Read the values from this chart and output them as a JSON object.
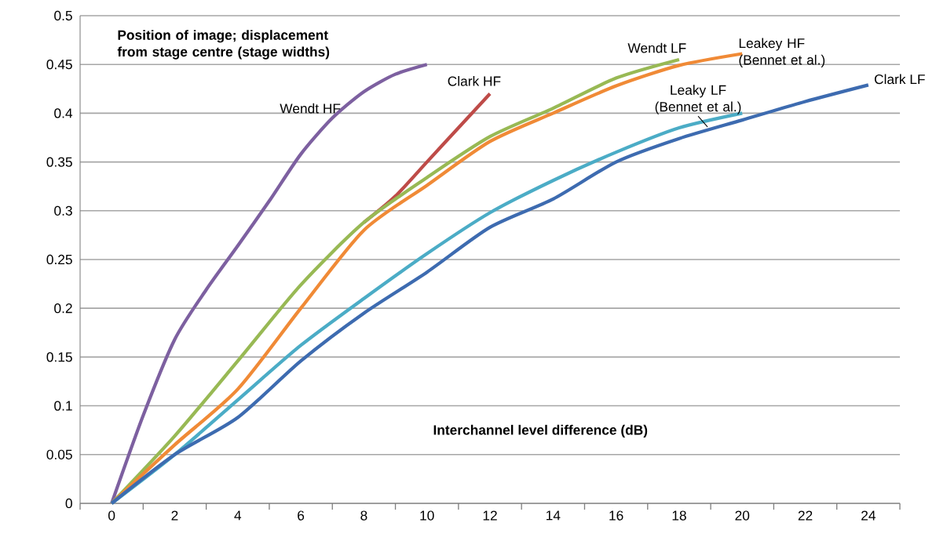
{
  "chart_data": {
    "type": "line",
    "xlabel": "Interchannel level difference (dB)",
    "ylabel": "Position of image; displacement from stage centre (stage widths)",
    "xlim": [
      -1,
      25
    ],
    "ylim": [
      0,
      0.5
    ],
    "xticks": [
      {
        "value": -1,
        "label": null
      },
      0,
      {
        "value": 1,
        "label": null
      },
      2,
      {
        "value": 3,
        "label": null
      },
      4,
      {
        "value": 5,
        "label": null
      },
      6,
      {
        "value": 7,
        "label": null
      },
      8,
      {
        "value": 9,
        "label": null
      },
      10,
      {
        "value": 11,
        "label": null
      },
      12,
      {
        "value": 13,
        "label": null
      },
      14,
      {
        "value": 15,
        "label": null
      },
      16,
      {
        "value": 17,
        "label": null
      },
      18,
      {
        "value": 19,
        "label": null
      },
      20,
      {
        "value": 21,
        "label": null
      },
      22,
      {
        "value": 23,
        "label": null
      },
      24,
      {
        "value": 25,
        "label": null
      }
    ],
    "yticks": [
      0,
      0.05,
      0.1,
      0.15,
      0.2,
      0.25,
      0.3,
      0.35,
      0.4,
      0.45,
      0.5
    ],
    "grid": "y",
    "series": [
      {
        "name": "Wendt HF",
        "color": "#7d60a0",
        "x": [
          0,
          1,
          2,
          3,
          4,
          5,
          6,
          7,
          8,
          9,
          10
        ],
        "values": [
          0,
          0.09,
          0.168,
          0.219,
          0.264,
          0.31,
          0.358,
          0.395,
          0.422,
          0.44,
          0.45
        ]
      },
      {
        "name": "Clark HF",
        "color": "#be4b48",
        "x": [
          8,
          9,
          10,
          11,
          12
        ],
        "values": [
          0.288,
          0.315,
          0.35,
          0.385,
          0.42
        ]
      },
      {
        "name": "Wendt LF",
        "color": "#98b954",
        "x": [
          0,
          2,
          4,
          6,
          8,
          10,
          12,
          14,
          16,
          18
        ],
        "values": [
          0,
          0.069,
          0.146,
          0.224,
          0.288,
          0.334,
          0.376,
          0.405,
          0.436,
          0.455
        ]
      },
      {
        "name": "Leakey HF (Bennet et al.)",
        "color": "#f08a36",
        "x": [
          0,
          2,
          4,
          6,
          8,
          10,
          12,
          14,
          16,
          18,
          20
        ],
        "values": [
          0,
          0.06,
          0.117,
          0.2,
          0.28,
          0.326,
          0.371,
          0.4,
          0.428,
          0.449,
          0.461
        ]
      },
      {
        "name": "Leaky LF (Bennet et al.)",
        "color": "#4bacc6",
        "x": [
          0,
          2,
          4,
          6,
          8,
          10,
          12,
          14,
          16,
          18,
          20
        ],
        "values": [
          0,
          0.05,
          0.106,
          0.162,
          0.21,
          0.256,
          0.298,
          0.331,
          0.36,
          0.385,
          0.4
        ]
      },
      {
        "name": "Clark LF",
        "color": "#3d6bb0",
        "x": [
          0,
          2,
          4,
          6,
          8,
          10,
          12,
          14,
          16,
          18,
          20,
          22,
          24
        ],
        "values": [
          0,
          0.05,
          0.088,
          0.146,
          0.195,
          0.237,
          0.283,
          0.312,
          0.35,
          0.374,
          0.393,
          0.412,
          0.429
        ]
      }
    ]
  }
}
